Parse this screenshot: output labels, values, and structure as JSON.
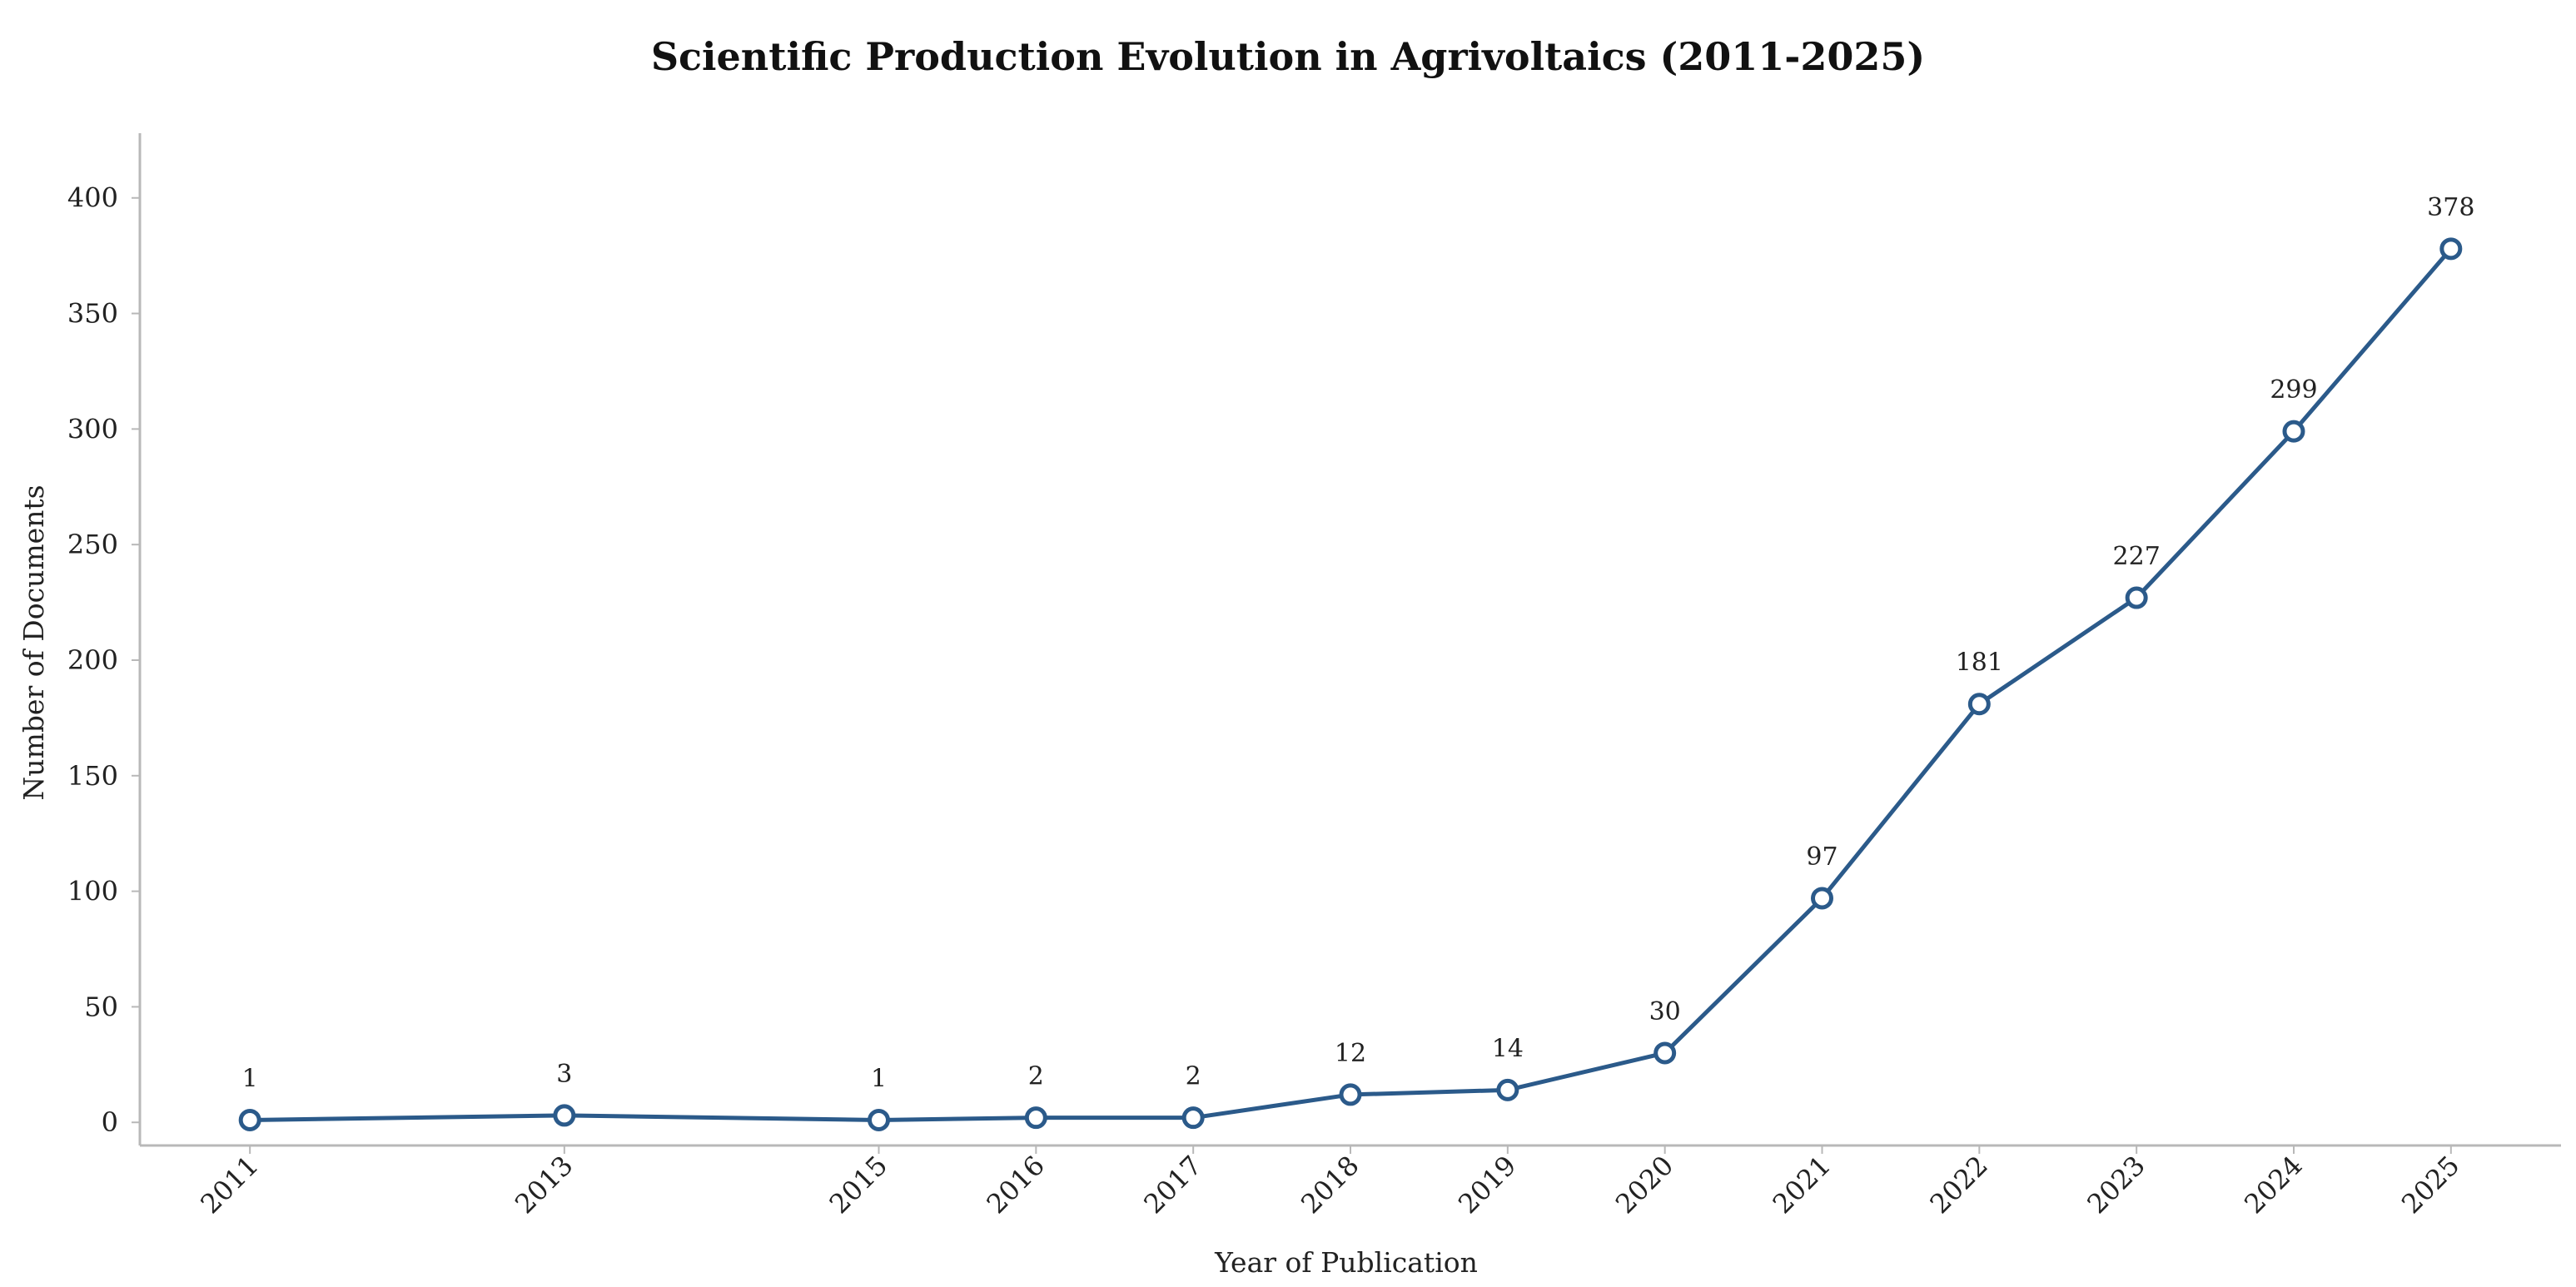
{
  "chart_data": {
    "type": "line",
    "title": "Scientific Production Evolution in Agrivoltaics (2011-2025)",
    "xlabel": "Year of Publication",
    "ylabel": "Number of Documents",
    "x": [
      2011,
      2013,
      2015,
      2016,
      2017,
      2018,
      2019,
      2020,
      2021,
      2022,
      2023,
      2024,
      2025
    ],
    "x_tick_labels": [
      "2011",
      "2013",
      "2015",
      "2016",
      "2017",
      "2018",
      "2019",
      "2020",
      "2021",
      "2022",
      "2023",
      "2024",
      "2025"
    ],
    "series": [
      {
        "name": "Number of Documents",
        "values": [
          1,
          3,
          1,
          2,
          2,
          12,
          14,
          30,
          97,
          181,
          227,
          299,
          378
        ],
        "color": "#2b5a8a"
      }
    ],
    "data_labels": [
      "1",
      "3",
      "1",
      "2",
      "2",
      "12",
      "14",
      "30",
      "97",
      "181",
      "227",
      "299",
      "378"
    ],
    "y_ticks": [
      0,
      50,
      100,
      150,
      200,
      250,
      300,
      350,
      400
    ],
    "y_tick_labels": [
      "0",
      "50",
      "100",
      "150",
      "200",
      "250",
      "300",
      "350",
      "400"
    ],
    "ylim": [
      -10,
      428
    ],
    "xlim": [
      2010.3,
      2025.7
    ],
    "grid": false,
    "legend": "none",
    "axis_color": "#b8b8b8"
  }
}
